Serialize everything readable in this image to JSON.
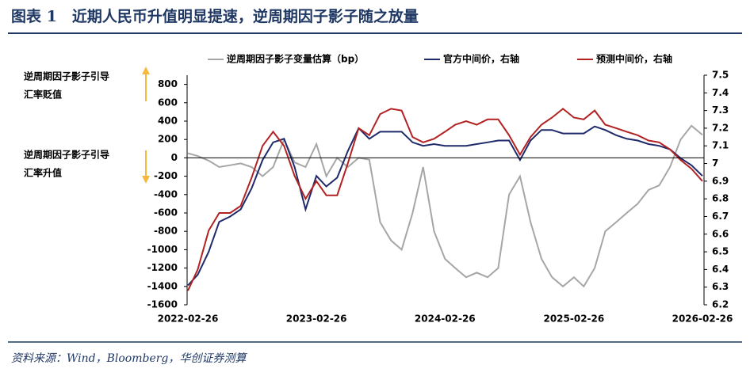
{
  "title": "图表 1　近期人民币升值明显提速，逆周期因子影子随之放量",
  "source": "资料来源：Wind，Bloomberg，华创证券测算",
  "chart_data": {
    "type": "line",
    "annotations": [
      "逆周期因子影子引导",
      "汇率贬值",
      "逆周期因子影子引导",
      "汇率升值"
    ],
    "x": [
      "2022-02-26",
      "2022-03-26",
      "2022-04-26",
      "2022-05-26",
      "2022-06-26",
      "2022-07-26",
      "2022-08-26",
      "2022-09-26",
      "2022-10-26",
      "2022-11-26",
      "2022-12-26",
      "2023-01-26",
      "2023-02-26",
      "2023-03-26",
      "2023-04-26",
      "2023-05-26",
      "2023-06-26",
      "2023-07-26",
      "2023-08-26",
      "2023-09-26",
      "2023-10-26",
      "2023-11-26",
      "2023-12-26",
      "2024-01-26",
      "2024-02-26",
      "2024-03-26",
      "2024-04-26",
      "2024-05-26",
      "2024-06-26",
      "2024-07-26",
      "2024-08-26",
      "2024-09-26",
      "2024-10-26",
      "2024-11-26",
      "2024-12-26",
      "2025-01-26",
      "2025-02-26",
      "2025-03-26",
      "2025-04-26",
      "2025-05-26",
      "2025-06-26",
      "2025-07-26",
      "2025-08-26",
      "2025-09-26",
      "2025-10-26",
      "2025-11-26",
      "2025-12-26",
      "2026-01-26",
      "2026-02-26"
    ],
    "xlim": [
      "2022-02-26",
      "2026-02-26"
    ],
    "xticks": [
      "2022-02-26",
      "2023-02-26",
      "2024-02-26",
      "2025-02-26",
      "2026-02-26"
    ],
    "ylim": [
      -1600,
      900
    ],
    "yticks": [
      -1600,
      -1400,
      -1200,
      -1000,
      -800,
      -600,
      -400,
      -200,
      0,
      200,
      400,
      600,
      800
    ],
    "y2lim": [
      6.2,
      7.5
    ],
    "y2ticks": [
      6.2,
      6.3,
      6.4,
      6.5,
      6.6,
      6.7,
      6.8,
      6.9,
      7,
      7.1,
      7.2,
      7.3,
      7.4,
      7.5
    ],
    "series": [
      {
        "name": "逆周期因子影子变量估算（bp）",
        "color": "#a6a6a6",
        "values": [
          50,
          20,
          -30,
          -100,
          -80,
          -60,
          -100,
          -200,
          -100,
          200,
          -50,
          -100,
          150,
          -200,
          0,
          -100,
          0,
          -20,
          -700,
          -900,
          -1000,
          -600,
          -100,
          -800,
          -1100,
          -1200,
          -1300,
          -1250,
          -1300,
          -1200,
          -400,
          -200,
          -700,
          -1100,
          -1300,
          -1400,
          -1300,
          -1400,
          -1200,
          -800,
          -700,
          -600,
          -500,
          -350,
          -300,
          -100,
          200,
          350,
          250
        ]
      },
      {
        "name": "官方中间价，右轴",
        "color": "#1f2a6b",
        "axis": "y2",
        "values": [
          6.31,
          6.37,
          6.5,
          6.67,
          6.7,
          6.74,
          6.86,
          7.02,
          7.12,
          7.14,
          6.98,
          6.74,
          6.93,
          6.87,
          6.92,
          7.07,
          7.2,
          7.14,
          7.18,
          7.18,
          7.18,
          7.12,
          7.1,
          7.11,
          7.1,
          7.1,
          7.1,
          7.11,
          7.12,
          7.13,
          7.13,
          7.02,
          7.13,
          7.19,
          7.19,
          7.17,
          7.17,
          7.17,
          7.21,
          7.19,
          7.16,
          7.14,
          7.13,
          7.11,
          7.1,
          7.08,
          7.03,
          6.99,
          6.93
        ]
      },
      {
        "name": "预测中间价，右轴",
        "color": "#b22222",
        "axis": "y2",
        "values": [
          6.28,
          6.4,
          6.62,
          6.72,
          6.72,
          6.76,
          6.92,
          7.1,
          7.18,
          7.1,
          6.93,
          6.8,
          6.9,
          6.82,
          6.82,
          7,
          7.2,
          7.16,
          7.28,
          7.31,
          7.3,
          7.15,
          7.12,
          7.14,
          7.18,
          7.22,
          7.24,
          7.22,
          7.25,
          7.25,
          7.16,
          7.05,
          7.15,
          7.22,
          7.26,
          7.31,
          7.26,
          7.25,
          7.3,
          7.22,
          7.2,
          7.18,
          7.16,
          7.13,
          7.12,
          7.08,
          7.02,
          6.97,
          6.9
        ]
      }
    ]
  }
}
